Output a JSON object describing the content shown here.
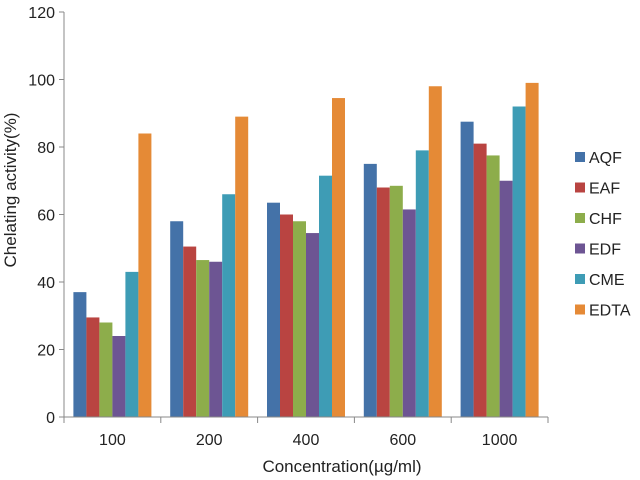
{
  "chart_data": {
    "type": "bar",
    "xlabel": "Concentration(µg/ml)",
    "ylabel": "Chelating activity(%)",
    "ylim": [
      0,
      120
    ],
    "yticks": [
      "0",
      "20",
      "40",
      "60",
      "80",
      "100",
      "120"
    ],
    "categories": [
      "100",
      "200",
      "400",
      "600",
      "1000"
    ],
    "grid": false,
    "legend_position": "right",
    "series": [
      {
        "name": "AQF",
        "color": "#4472A8",
        "values": [
          37,
          58,
          63.5,
          75,
          87.5
        ]
      },
      {
        "name": "EAF",
        "color": "#B94441",
        "values": [
          29.5,
          50.5,
          60,
          68,
          81
        ]
      },
      {
        "name": "CHF",
        "color": "#8DAD4B",
        "values": [
          28,
          46.5,
          58,
          68.5,
          77.5
        ]
      },
      {
        "name": "EDF",
        "color": "#6D5593",
        "values": [
          24,
          46,
          54.5,
          61.5,
          70
        ]
      },
      {
        "name": "CME",
        "color": "#3E9CB5",
        "values": [
          43,
          66,
          71.5,
          79,
          92
        ]
      },
      {
        "name": "EDTA",
        "color": "#E58A36",
        "values": [
          84,
          89,
          94.5,
          98,
          99
        ]
      }
    ]
  }
}
